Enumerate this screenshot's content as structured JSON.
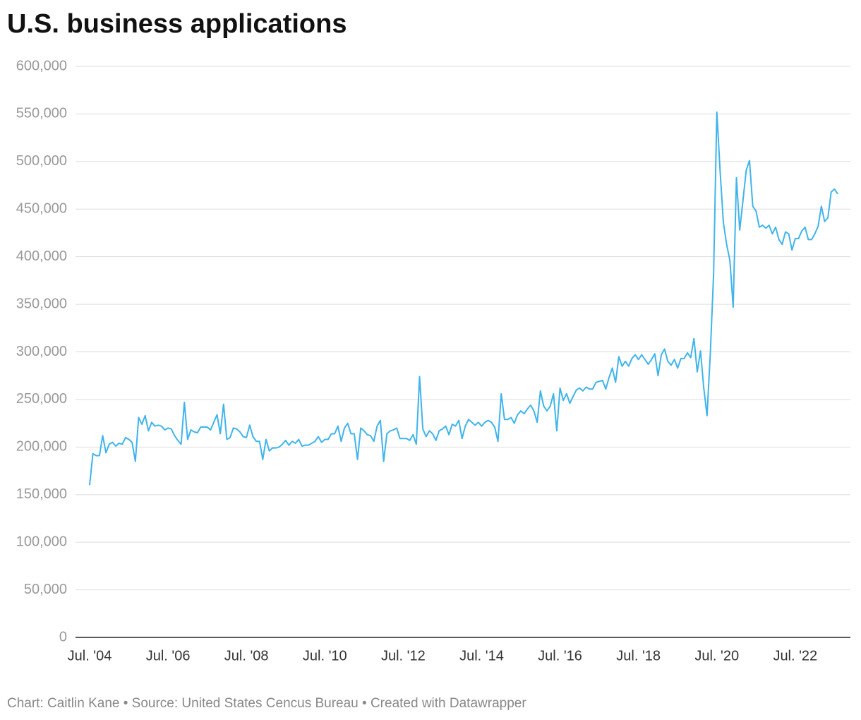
{
  "chart_data": {
    "type": "line",
    "title": "U.S. business applications",
    "footer": "Chart: Caitlin Kane • Source: United States Cencus Bureau • Created with Datawrapper",
    "categories": [
      "Jul. '04",
      null,
      null,
      null,
      null,
      null,
      null,
      null,
      null,
      null,
      null,
      null,
      null,
      null,
      null,
      null,
      null,
      null,
      null,
      null,
      null,
      null,
      null,
      null,
      "Jul. '06",
      null,
      null,
      null,
      null,
      null,
      null,
      null,
      null,
      null,
      null,
      null,
      null,
      null,
      null,
      null,
      null,
      null,
      null,
      null,
      null,
      null,
      null,
      null,
      "Jul. '08",
      null,
      null,
      null,
      null,
      null,
      null,
      null,
      null,
      null,
      null,
      null,
      null,
      null,
      null,
      null,
      null,
      null,
      null,
      null,
      null,
      null,
      null,
      null,
      "Jul. '10",
      null,
      null,
      null,
      null,
      null,
      null,
      null,
      null,
      null,
      null,
      null,
      null,
      null,
      null,
      null,
      null,
      null,
      null,
      null,
      null,
      null,
      null,
      null,
      "Jul. '12",
      null,
      null,
      null,
      null,
      null,
      null,
      null,
      null,
      null,
      null,
      null,
      null,
      null,
      null,
      null,
      null,
      null,
      null,
      null,
      null,
      null,
      null,
      null,
      "Jul. '14",
      null,
      null,
      null,
      null,
      null,
      null,
      null,
      null,
      null,
      null,
      null,
      null,
      null,
      null,
      null,
      null,
      null,
      null,
      null,
      null,
      null,
      null,
      null,
      "Jul. '16",
      null,
      null,
      null,
      null,
      null,
      null,
      null,
      null,
      null,
      null,
      null,
      null,
      null,
      null,
      null,
      null,
      null,
      null,
      null,
      null,
      null,
      null,
      null,
      "Jul. '18",
      null,
      null,
      null,
      null,
      null,
      null,
      null,
      null,
      null,
      null,
      null,
      null,
      null,
      null,
      null,
      null,
      null,
      null,
      null,
      null,
      null,
      null,
      null,
      "Jul. '20",
      null,
      null,
      null,
      null,
      null,
      null,
      null,
      null,
      null,
      null,
      null,
      null,
      null,
      null,
      null,
      null,
      null,
      null,
      null,
      null,
      null,
      null,
      null,
      "Jul. '22",
      null,
      null,
      null,
      null,
      null,
      null,
      null,
      null,
      null,
      null,
      null,
      null,
      null
    ],
    "series": [
      {
        "color": "#3fb4ec",
        "values": [
          160000,
          193000,
          191000,
          191000,
          212000,
          194000,
          203000,
          205000,
          201000,
          204000,
          203000,
          210000,
          208000,
          205000,
          185000,
          231000,
          224000,
          233000,
          217000,
          226000,
          222000,
          223000,
          222000,
          218000,
          220000,
          219000,
          212000,
          207000,
          203000,
          247000,
          208000,
          218000,
          216000,
          215000,
          221000,
          221000,
          221000,
          218000,
          226000,
          234000,
          214000,
          245000,
          208000,
          210000,
          220000,
          219000,
          216000,
          211000,
          210000,
          223000,
          211000,
          206000,
          206000,
          187000,
          208000,
          196000,
          199000,
          199000,
          200000,
          203000,
          207000,
          202000,
          206000,
          204000,
          208000,
          201000,
          202000,
          202000,
          204000,
          206000,
          211000,
          205000,
          208000,
          208000,
          214000,
          214000,
          222000,
          206000,
          220000,
          225000,
          214000,
          214000,
          187000,
          220000,
          217000,
          213000,
          212000,
          206000,
          222000,
          228000,
          185000,
          214000,
          217000,
          218000,
          220000,
          209000,
          209000,
          209000,
          207000,
          213000,
          203000,
          274000,
          219000,
          211000,
          217000,
          214000,
          207000,
          217000,
          219000,
          222000,
          213000,
          224000,
          222000,
          228000,
          209000,
          222000,
          229000,
          226000,
          223000,
          226000,
          222000,
          226000,
          228000,
          226000,
          221000,
          206000,
          256000,
          229000,
          229000,
          231000,
          225000,
          234000,
          238000,
          235000,
          240000,
          244000,
          238000,
          226000,
          259000,
          243000,
          238000,
          243000,
          256000,
          217000,
          262000,
          249000,
          256000,
          246000,
          253000,
          260000,
          262000,
          259000,
          263000,
          261000,
          261000,
          268000,
          269000,
          270000,
          261000,
          273000,
          283000,
          268000,
          295000,
          285000,
          290000,
          285000,
          293000,
          297000,
          292000,
          297000,
          292000,
          287000,
          292000,
          298000,
          275000,
          297000,
          303000,
          290000,
          286000,
          292000,
          283000,
          293000,
          293000,
          299000,
          294000,
          314000,
          279000,
          301000,
          262000,
          233000,
          298000,
          381000,
          552000,
          490000,
          436000,
          413000,
          396000,
          347000,
          483000,
          428000,
          459000,
          491000,
          501000,
          453000,
          448000,
          431000,
          433000,
          430000,
          433000,
          424000,
          431000,
          418000,
          413000,
          426000,
          424000,
          407000,
          419000,
          419000,
          427000,
          431000,
          418000,
          418000,
          424000,
          432000,
          453000,
          437000,
          441000,
          468000,
          471000,
          466000
        ]
      }
    ],
    "ylim": [
      0,
      600000
    ],
    "yticks": [
      0,
      {
        "value": 50000,
        "label": "50,000"
      },
      {
        "value": 100000,
        "label": "100,000"
      },
      {
        "value": 150000,
        "label": "150,000"
      },
      {
        "value": 200000,
        "label": "200,000"
      },
      {
        "value": 250000,
        "label": "250,000"
      },
      {
        "value": 300000,
        "label": "300,000"
      },
      {
        "value": 350000,
        "label": "350,000"
      },
      {
        "value": 400000,
        "label": "400,000"
      },
      {
        "value": 450000,
        "label": "450,000"
      },
      {
        "value": 500000,
        "label": "500,000"
      },
      {
        "value": 550000,
        "label": "550,000"
      },
      {
        "value": 600000,
        "label": "600,000"
      }
    ],
    "grid": true
  }
}
